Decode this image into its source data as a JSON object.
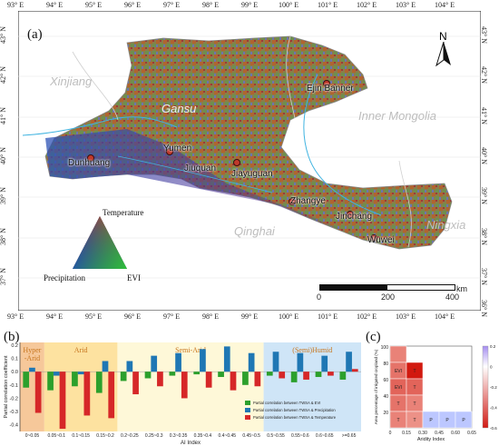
{
  "map": {
    "panel_label": "(a)",
    "lon_ticks": [
      "93° E",
      "94° E",
      "95° E",
      "96° E",
      "97° E",
      "98° E",
      "99° E",
      "100° E",
      "101° E",
      "102° E",
      "103° E",
      "104° E"
    ],
    "lat_ticks": [
      "43° N",
      "42° N",
      "41° N",
      "40° N",
      "39° N",
      "38° N",
      "37° N",
      "36° N"
    ],
    "regions": {
      "xinjiang": "Xinjiang",
      "gansu": "Gansu",
      "inner_mongolia": "Inner Mongolia",
      "qinghai": "Qinghai",
      "ningxia": "Ningxia"
    },
    "cities": {
      "ejin": "Ejin Banner",
      "yumen": "Yumen",
      "dunhuang": "Dunhuang",
      "jiuquan": "Jiuquan",
      "jiayuguan": "Jiayuguan",
      "zhangye": "Zhangye",
      "jinchang": "Jinchang",
      "wuwei": "Wuwei"
    },
    "north_label": "N",
    "scale": {
      "l0": "0",
      "l1": "200",
      "l2": "400",
      "unit": "km"
    },
    "legend": {
      "top": "Temperature",
      "left": "Precipitation",
      "right": "EVI"
    }
  },
  "panel_b": {
    "panel_label": "(b)",
    "ylabel": "Partial correlation coefficient",
    "xlabel": "AI Index",
    "zones": {
      "hyper": "Hyper\n-Arid",
      "arid": "Arid",
      "semi": "Semi-Arid",
      "humid": "(Semi)Humid"
    },
    "yticks": [
      "0.2",
      "0.1",
      "0.0",
      "-0.1",
      "-0.2",
      "-0.3",
      "-0.4"
    ],
    "legend": {
      "evi": "Partial correlation between TWSA & EVI",
      "precip": "Partial correlation between TWSA & Precipitation",
      "temp": "Partial correlation between TWSA & Temperature"
    },
    "colors": {
      "evi": "#2ca02c",
      "precip": "#1f77b4",
      "temp": "#d62728"
    }
  },
  "chart_data": [
    {
      "type": "bar",
      "categories": [
        "0~0.05",
        "0.05~0.1",
        "0.1~0.15",
        "0.15~0.2",
        "0.2~0.25",
        "0.25~0.3",
        "0.3~0.35",
        "0.35~0.4",
        "0.4~0.45",
        "0.45~0.5",
        "0.5~0.55",
        "0.55~0.6",
        "0.6~0.65",
        ">=0.65"
      ],
      "series": [
        {
          "name": "Partial correlation between TWSA & EVI",
          "values": [
            -0.12,
            -0.14,
            -0.11,
            -0.16,
            -0.07,
            -0.05,
            -0.03,
            -0.02,
            -0.04,
            -0.1,
            -0.03,
            -0.08,
            -0.04,
            -0.06
          ]
        },
        {
          "name": "Partial correlation between TWSA & Precipitation",
          "values": [
            0.03,
            -0.03,
            -0.02,
            0.08,
            0.08,
            0.12,
            0.14,
            0.17,
            0.19,
            0.14,
            0.15,
            0.14,
            0.12,
            0.15
          ]
        },
        {
          "name": "Partial correlation between TWSA & Temperature",
          "values": [
            -0.31,
            -0.43,
            -0.33,
            -0.35,
            -0.17,
            -0.11,
            -0.2,
            -0.12,
            -0.14,
            -0.11,
            -0.05,
            -0.06,
            -0.03,
            0.02
          ]
        }
      ],
      "ylabel": "Partial correlation coefficient",
      "xlabel": "AI Index",
      "ylim": [
        -0.45,
        0.22
      ]
    },
    {
      "type": "heatmap",
      "title": "",
      "x_ticks": [
        "0",
        "0.15",
        "0.30",
        "0.45",
        "0.60",
        "0.65"
      ],
      "y_ticks": [
        "20",
        "40",
        "60",
        "80",
        "100"
      ],
      "xlabel": "Aridity Index",
      "ylabel": "Area percentage of irrigated cropland (%)",
      "colorbar_ticks": [
        "0.2",
        "0",
        "-0.2",
        "-0.4",
        "-0.6"
      ],
      "cells": [
        {
          "col": 0,
          "row": 4,
          "value": -0.35,
          "label": ""
        },
        {
          "col": 0,
          "row": 3,
          "value": -0.4,
          "label": "EVI"
        },
        {
          "col": 0,
          "row": 2,
          "value": -0.45,
          "label": "EVI"
        },
        {
          "col": 0,
          "row": 1,
          "value": -0.4,
          "label": "T"
        },
        {
          "col": 0,
          "row": 0,
          "value": -0.35,
          "label": "T"
        },
        {
          "col": 1,
          "row": 3,
          "value": -0.7,
          "label": "T"
        },
        {
          "col": 1,
          "row": 2,
          "value": -0.45,
          "label": "T"
        },
        {
          "col": 1,
          "row": 1,
          "value": -0.35,
          "label": "T"
        },
        {
          "col": 1,
          "row": 0,
          "value": -0.3,
          "label": "T"
        },
        {
          "col": 2,
          "row": 0,
          "value": 0.15,
          "label": "P"
        },
        {
          "col": 3,
          "row": 0,
          "value": 0.15,
          "label": "P"
        },
        {
          "col": 4,
          "row": 0,
          "value": 0.15,
          "label": "P"
        }
      ]
    }
  ],
  "panel_c": {
    "panel_label": "(c)"
  }
}
